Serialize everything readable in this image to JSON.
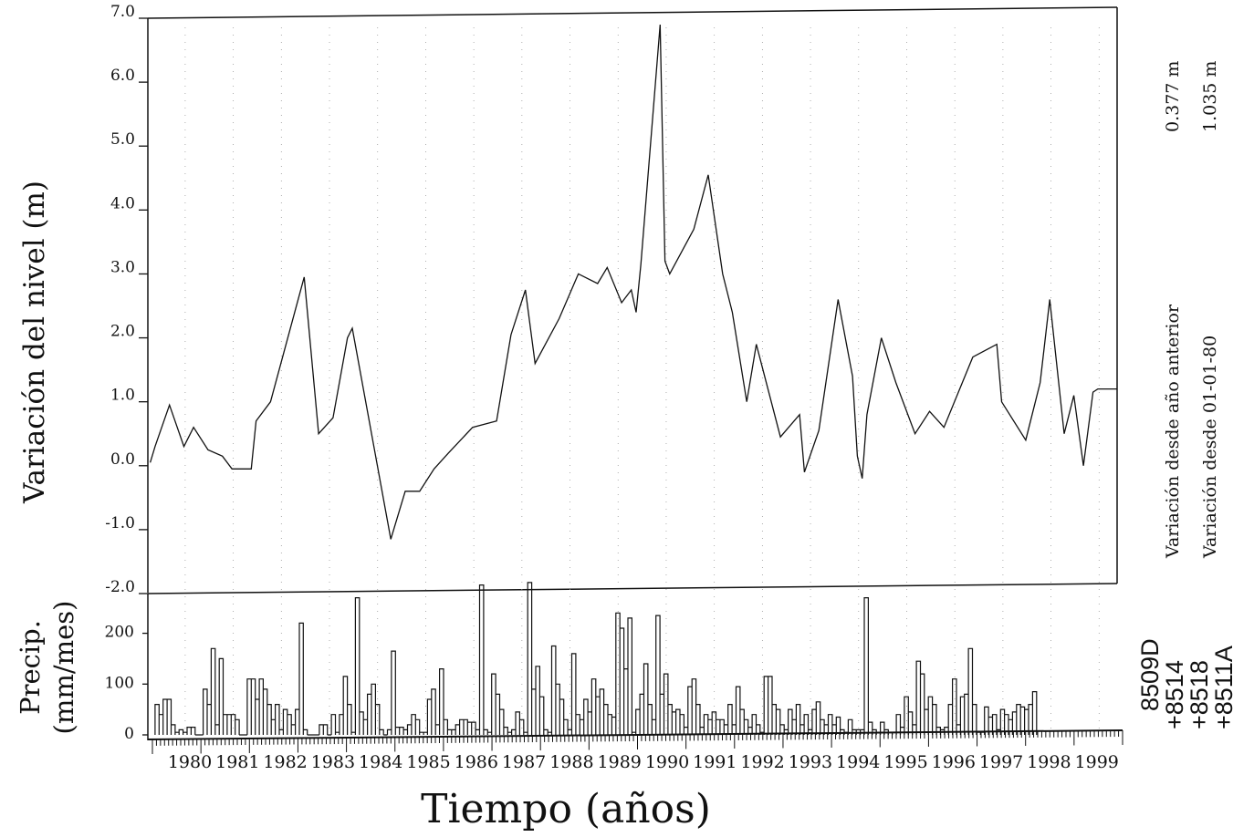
{
  "chart_data": [
    {
      "type": "line",
      "title": "",
      "ylabel": "Variación del nivel (m)",
      "xlabel": "",
      "ylim": [
        -2.0,
        7.0
      ],
      "xlim": [
        1979.85,
        2000.0
      ],
      "y_ticks": [
        "7.0",
        "6.0",
        "5.0",
        "4.0",
        "3.0",
        "2.0",
        "1.0",
        "0.0",
        "-1.0",
        "-2.0"
      ],
      "grid": "dotted vertical lines at each year",
      "series": [
        {
          "x": [
            1979.9,
            1980.0,
            1980.3,
            1980.6,
            1980.8,
            1981.1,
            1981.4,
            1981.6,
            1982.0,
            1982.1,
            1982.4,
            1983.1,
            1983.4,
            1983.7,
            1984.0,
            1984.1,
            1984.9,
            1985.2,
            1985.5,
            1985.8,
            1986.1,
            1986.6,
            1987.1,
            1987.4,
            1987.7,
            1987.9,
            1988.4,
            1988.8,
            1989.2,
            1989.4,
            1989.7,
            1989.9,
            1990.0,
            1990.1,
            1990.5,
            1990.6,
            1990.7,
            1991.2,
            1991.5,
            1991.8,
            1992.0,
            1992.3,
            1992.5,
            1993.0,
            1993.4,
            1993.5,
            1993.8,
            1994.2,
            1994.5,
            1994.6,
            1994.7,
            1994.8,
            1995.1,
            1995.4,
            1995.8,
            1996.1,
            1996.4,
            1997.0,
            1997.5,
            1997.6,
            1998.1,
            1998.4,
            1998.6,
            1998.9,
            1999.1,
            1999.3,
            1999.5,
            1999.6,
            1999.7,
            2000.0
          ],
          "y": [
            0.05,
            0.3,
            0.95,
            0.3,
            0.6,
            0.25,
            0.15,
            -0.05,
            -0.05,
            0.7,
            1.0,
            2.95,
            0.5,
            0.75,
            2.0,
            2.15,
            -1.15,
            -0.4,
            -0.4,
            -0.05,
            0.2,
            0.6,
            0.7,
            2.05,
            2.75,
            1.6,
            2.3,
            3.0,
            2.85,
            3.1,
            2.55,
            2.75,
            2.4,
            3.15,
            6.9,
            3.2,
            3.0,
            3.7,
            4.55,
            3.0,
            2.4,
            1.0,
            1.9,
            0.45,
            0.8,
            -0.1,
            0.55,
            2.6,
            1.4,
            0.15,
            -0.2,
            0.8,
            2.0,
            1.3,
            0.5,
            0.85,
            0.6,
            1.7,
            1.9,
            1.0,
            0.4,
            1.3,
            2.6,
            0.5,
            1.1,
            0.0,
            1.15,
            1.2,
            1.2,
            1.2
          ]
        }
      ]
    },
    {
      "type": "bar",
      "ylabel_line1": "Precip.",
      "ylabel_line2": "(mm/mes)",
      "xlabel": "Tiempo (años)",
      "ylim": [
        0,
        280
      ],
      "y_ticks": [
        "200",
        "100",
        "0"
      ],
      "x_ticks": [
        "1980",
        "1981",
        "1982",
        "1983",
        "1984",
        "1985",
        "1986",
        "1987",
        "1988",
        "1989",
        "1990",
        "1991",
        "1992",
        "1993",
        "1994",
        "1995",
        "1996",
        "1997",
        "1998",
        "1999"
      ],
      "start": 1980.0,
      "step": 0.0833,
      "values": [
        60,
        40,
        70,
        70,
        20,
        5,
        10,
        5,
        15,
        15,
        0,
        0,
        90,
        60,
        170,
        20,
        150,
        40,
        40,
        40,
        30,
        0,
        0,
        110,
        110,
        70,
        110,
        90,
        60,
        30,
        60,
        10,
        50,
        40,
        20,
        50,
        220,
        10,
        0,
        0,
        0,
        20,
        20,
        0,
        40,
        5,
        40,
        115,
        60,
        5,
        270,
        45,
        30,
        80,
        100,
        60,
        10,
        0,
        10,
        165,
        15,
        15,
        10,
        20,
        40,
        30,
        5,
        5,
        70,
        90,
        20,
        130,
        30,
        10,
        10,
        20,
        30,
        30,
        25,
        25,
        10,
        295,
        10,
        5,
        120,
        80,
        50,
        15,
        5,
        10,
        45,
        30,
        5,
        300,
        90,
        135,
        75,
        10,
        5,
        175,
        100,
        70,
        30,
        10,
        160,
        40,
        30,
        70,
        45,
        110,
        75,
        90,
        60,
        40,
        35,
        240,
        210,
        130,
        230,
        5,
        50,
        80,
        140,
        60,
        30,
        235,
        80,
        120,
        60,
        45,
        50,
        40,
        15,
        95,
        110,
        60,
        15,
        40,
        30,
        45,
        30,
        30,
        20,
        60,
        20,
        95,
        50,
        30,
        15,
        40,
        20,
        5,
        115,
        115,
        60,
        50,
        20,
        10,
        50,
        30,
        60,
        20,
        40,
        10,
        50,
        65,
        30,
        20,
        40,
        20,
        35,
        10,
        5,
        30,
        10,
        10,
        10,
        270,
        25,
        10,
        5,
        25,
        10,
        5,
        5,
        40,
        15,
        75,
        45,
        20,
        145,
        120,
        50,
        75,
        60,
        15,
        10,
        15,
        60,
        110,
        20,
        75,
        80,
        170,
        60,
        5,
        5,
        55,
        35,
        40,
        10,
        50,
        40,
        30,
        45,
        60,
        55,
        50,
        60,
        85
      ],
      "series": [
        {
          "name": "8509D"
        },
        {
          "name": "+8514"
        },
        {
          "name": "+8518"
        },
        {
          "name": "+8511A"
        }
      ]
    }
  ],
  "side_labels": {
    "anterior": "Variación desde año anterior",
    "anterior_value": "0.377 m",
    "origen": "Variación desde 01-01-80",
    "origen_value": "1.035 m"
  },
  "colors": {
    "ink": "#111111",
    "grid": "#9a9a9a"
  }
}
